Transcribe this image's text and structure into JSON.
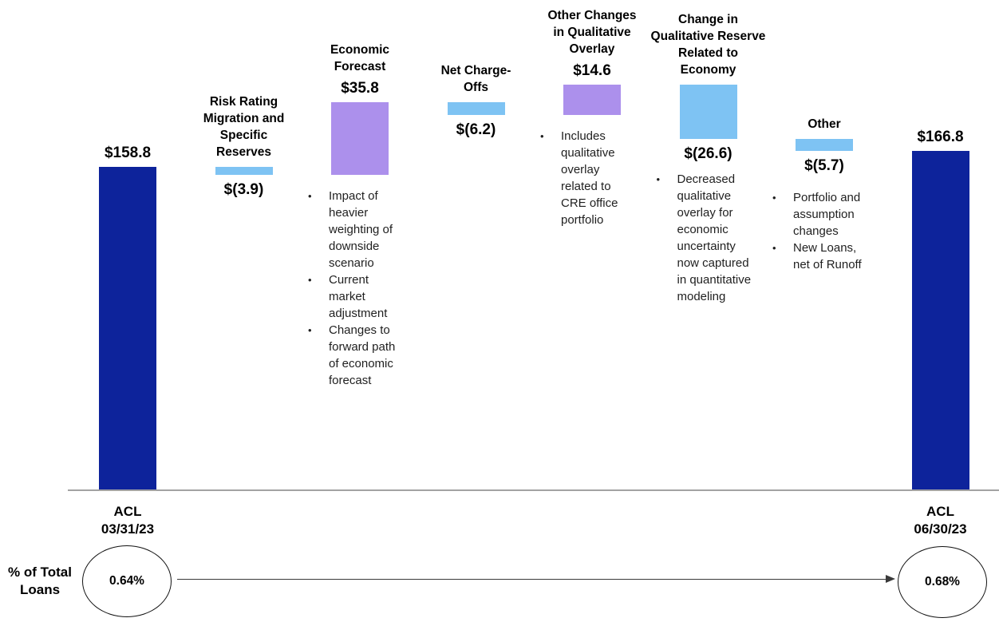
{
  "chart_data": {
    "type": "waterfall",
    "title": "",
    "unit": "$ millions",
    "grid": false,
    "baseline": 0,
    "colors": {
      "total": "#0D239B",
      "increase": "#AC90EC",
      "decrease": "#7EC3F3"
    },
    "columns": [
      {
        "id": "acl-start",
        "role": "total",
        "value": 158.8,
        "label": "$158.8",
        "header_lines": [],
        "footer_lines": [
          "ACL",
          "03/31/23"
        ],
        "bullets": []
      },
      {
        "id": "risk-rating-migration",
        "role": "decrease",
        "value": -3.9,
        "label": "$(3.9)",
        "header_lines": [
          "Risk Rating",
          "Migration and",
          "Specific",
          "Reserves"
        ],
        "bullets": []
      },
      {
        "id": "economic-forecast",
        "role": "increase",
        "value": 35.8,
        "label": "$35.8",
        "header_lines": [
          "Economic",
          "Forecast"
        ],
        "bullets": [
          "Impact of heavier weighting of downside scenario",
          "Current market adjustment",
          "Changes to forward path of economic forecast"
        ]
      },
      {
        "id": "net-charge-offs",
        "role": "decrease",
        "value": -6.2,
        "label": "$(6.2)",
        "header_lines": [
          "Net Charge-",
          "Offs"
        ],
        "bullets": []
      },
      {
        "id": "other-qualitative-overlay",
        "role": "increase",
        "value": 14.6,
        "label": "$14.6",
        "header_lines": [
          "Other Changes",
          "in Qualitative",
          "Overlay"
        ],
        "bullets": [
          "Includes qualitative overlay related to CRE office portfolio"
        ]
      },
      {
        "id": "change-qualitative-reserve",
        "role": "decrease",
        "value": -26.6,
        "label": "$(26.6)",
        "header_lines": [
          "Change in",
          "Qualitative Reserve",
          "Related to",
          "Economy"
        ],
        "bullets": [
          "Decreased qualitative overlay for economic uncertainty now captured in quantitative modeling"
        ]
      },
      {
        "id": "other",
        "role": "decrease",
        "value": -5.7,
        "label": "$(5.7)",
        "header_lines": [
          "Other"
        ],
        "bullets": [
          "Portfolio and assumption changes",
          "New Loans, net of Runoff"
        ]
      },
      {
        "id": "acl-end",
        "role": "total",
        "value": 166.8,
        "label": "$166.8",
        "header_lines": [],
        "footer_lines": [
          "ACL",
          "06/30/23"
        ],
        "bullets": []
      }
    ],
    "footer": {
      "metric_label_lines": [
        "% of Total",
        "Loans"
      ],
      "start_pct": "0.64%",
      "end_pct": "0.68%"
    }
  }
}
